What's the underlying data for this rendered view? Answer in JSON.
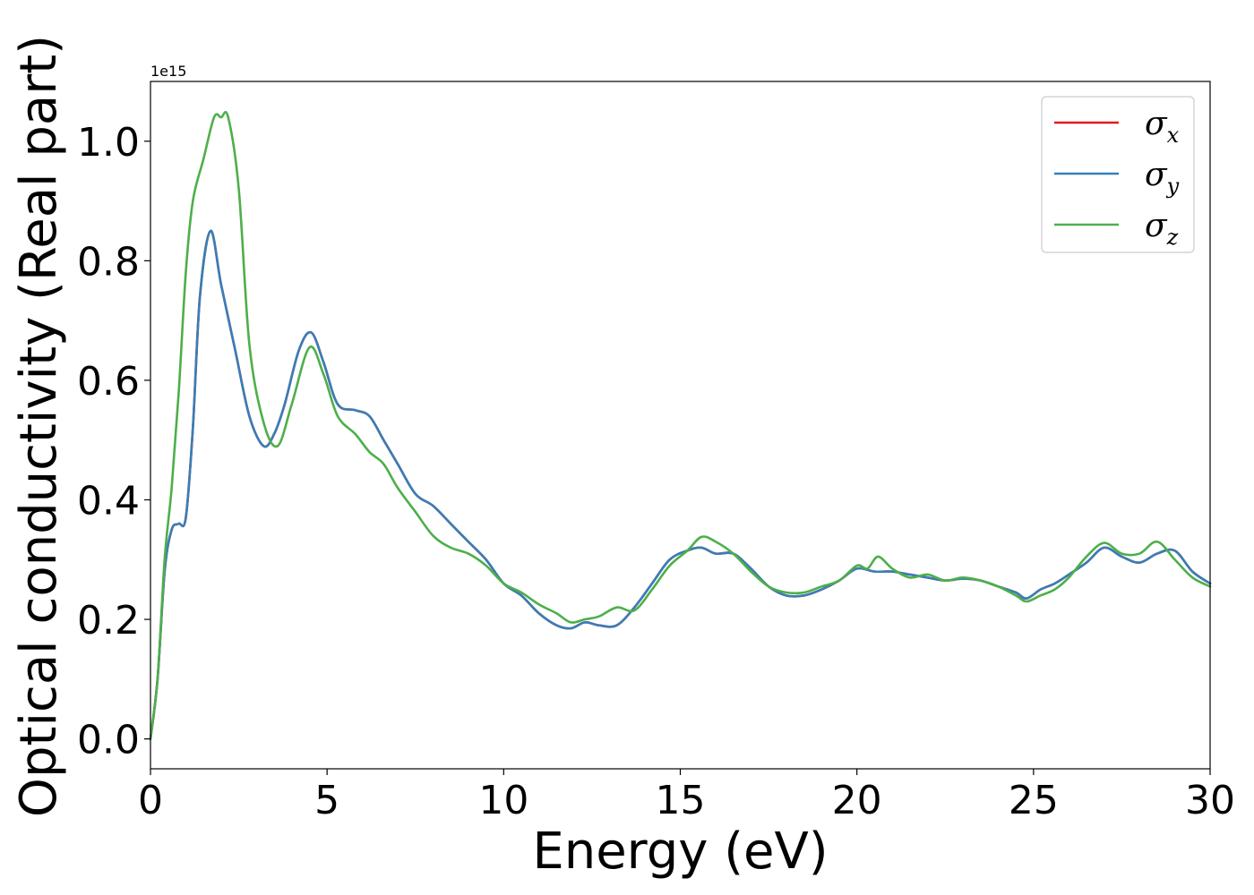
{
  "chart_data": {
    "type": "line",
    "title": "",
    "xlabel": "Energy (eV)",
    "ylabel": "Optical conductivity (Real part)",
    "y_offset_label": "1e15",
    "xlim": [
      0,
      30
    ],
    "ylim": [
      -0.05,
      1.1
    ],
    "y_scale_factor": 1000000000000000.0,
    "x_ticks": [
      0,
      5,
      10,
      15,
      20,
      25,
      30
    ],
    "x_tick_labels": [
      "0",
      "5",
      "10",
      "15",
      "20",
      "25",
      "30"
    ],
    "y_ticks": [
      0.0,
      0.2,
      0.4,
      0.6,
      0.8,
      1.0
    ],
    "y_tick_labels": [
      "0.0",
      "0.2",
      "0.4",
      "0.6",
      "0.8",
      "1.0"
    ],
    "grid": false,
    "legend_position": "top-right",
    "series": [
      {
        "name": "σx",
        "legend_base": "σ",
        "legend_sub": "x",
        "color": "#e41a1c",
        "x": [
          0,
          0.2,
          0.4,
          0.6,
          0.8,
          1.0,
          1.2,
          1.4,
          1.7,
          2.0,
          2.4,
          2.8,
          3.2,
          3.5,
          3.8,
          4.2,
          4.55,
          4.9,
          5.3,
          5.8,
          6.2,
          6.6,
          7.0,
          7.5,
          8.0,
          8.5,
          9.0,
          9.5,
          10.0,
          10.5,
          11.0,
          11.5,
          11.9,
          12.3,
          12.7,
          13.2,
          13.7,
          14.2,
          14.7,
          15.2,
          15.6,
          16.0,
          16.5,
          17.0,
          17.5,
          18.0,
          18.5,
          19.0,
          19.5,
          20.0,
          20.5,
          21.0,
          21.5,
          22.0,
          22.5,
          23.0,
          23.5,
          24.0,
          24.5,
          24.8,
          25.2,
          25.6,
          26.0,
          26.5,
          27.0,
          27.5,
          28.0,
          28.5,
          29.0,
          29.5,
          30.0
        ],
        "y": [
          0.0,
          0.1,
          0.28,
          0.35,
          0.36,
          0.37,
          0.52,
          0.74,
          0.85,
          0.76,
          0.65,
          0.54,
          0.49,
          0.51,
          0.56,
          0.65,
          0.68,
          0.63,
          0.56,
          0.55,
          0.54,
          0.5,
          0.46,
          0.41,
          0.39,
          0.36,
          0.33,
          0.3,
          0.26,
          0.24,
          0.21,
          0.19,
          0.185,
          0.195,
          0.19,
          0.19,
          0.22,
          0.26,
          0.3,
          0.315,
          0.32,
          0.31,
          0.31,
          0.285,
          0.255,
          0.24,
          0.24,
          0.25,
          0.265,
          0.285,
          0.28,
          0.28,
          0.275,
          0.27,
          0.265,
          0.268,
          0.265,
          0.255,
          0.245,
          0.235,
          0.25,
          0.26,
          0.275,
          0.295,
          0.32,
          0.305,
          0.295,
          0.31,
          0.315,
          0.28,
          0.26
        ]
      },
      {
        "name": "σy",
        "legend_base": "σ",
        "legend_sub": "y",
        "color": "#377eb8",
        "x": [
          0,
          0.2,
          0.4,
          0.6,
          0.8,
          1.0,
          1.2,
          1.4,
          1.7,
          2.0,
          2.4,
          2.8,
          3.2,
          3.5,
          3.8,
          4.2,
          4.55,
          4.9,
          5.3,
          5.8,
          6.2,
          6.6,
          7.0,
          7.5,
          8.0,
          8.5,
          9.0,
          9.5,
          10.0,
          10.5,
          11.0,
          11.5,
          11.9,
          12.3,
          12.7,
          13.2,
          13.7,
          14.2,
          14.7,
          15.2,
          15.6,
          16.0,
          16.5,
          17.0,
          17.5,
          18.0,
          18.5,
          19.0,
          19.5,
          20.0,
          20.5,
          21.0,
          21.5,
          22.0,
          22.5,
          23.0,
          23.5,
          24.0,
          24.5,
          24.8,
          25.2,
          25.6,
          26.0,
          26.5,
          27.0,
          27.5,
          28.0,
          28.5,
          29.0,
          29.5,
          30.0
        ],
        "y": [
          0.0,
          0.1,
          0.28,
          0.35,
          0.36,
          0.37,
          0.52,
          0.74,
          0.85,
          0.76,
          0.65,
          0.54,
          0.49,
          0.51,
          0.56,
          0.65,
          0.68,
          0.63,
          0.56,
          0.55,
          0.54,
          0.5,
          0.46,
          0.41,
          0.39,
          0.36,
          0.33,
          0.3,
          0.26,
          0.24,
          0.21,
          0.19,
          0.185,
          0.195,
          0.19,
          0.19,
          0.22,
          0.26,
          0.3,
          0.315,
          0.32,
          0.31,
          0.31,
          0.285,
          0.255,
          0.24,
          0.24,
          0.25,
          0.265,
          0.285,
          0.28,
          0.28,
          0.275,
          0.27,
          0.265,
          0.268,
          0.265,
          0.255,
          0.245,
          0.235,
          0.25,
          0.26,
          0.275,
          0.295,
          0.32,
          0.305,
          0.295,
          0.31,
          0.315,
          0.28,
          0.26
        ]
      },
      {
        "name": "σz",
        "legend_base": "σ",
        "legend_sub": "z",
        "color": "#4daf4a",
        "x": [
          0,
          0.2,
          0.4,
          0.6,
          0.8,
          1.0,
          1.2,
          1.5,
          1.8,
          2.0,
          2.2,
          2.5,
          2.8,
          3.2,
          3.6,
          4.0,
          4.5,
          4.9,
          5.3,
          5.8,
          6.2,
          6.6,
          7.0,
          7.5,
          8.0,
          8.5,
          9.0,
          9.5,
          10.0,
          10.5,
          11.0,
          11.5,
          11.9,
          12.3,
          12.7,
          13.2,
          13.7,
          14.2,
          14.7,
          15.2,
          15.6,
          16.0,
          16.5,
          17.0,
          17.5,
          18.0,
          18.5,
          19.0,
          19.5,
          20.0,
          20.3,
          20.6,
          21.0,
          21.5,
          22.0,
          22.5,
          23.0,
          23.5,
          24.0,
          24.5,
          24.8,
          25.2,
          25.6,
          26.0,
          26.5,
          27.0,
          27.5,
          28.0,
          28.5,
          29.0,
          29.5,
          30.0
        ],
        "y": [
          0.0,
          0.1,
          0.3,
          0.42,
          0.58,
          0.78,
          0.9,
          0.97,
          1.04,
          1.04,
          1.04,
          0.92,
          0.66,
          0.53,
          0.49,
          0.56,
          0.655,
          0.61,
          0.54,
          0.51,
          0.48,
          0.46,
          0.42,
          0.38,
          0.34,
          0.32,
          0.31,
          0.29,
          0.26,
          0.245,
          0.225,
          0.21,
          0.195,
          0.2,
          0.205,
          0.22,
          0.215,
          0.25,
          0.29,
          0.315,
          0.338,
          0.33,
          0.31,
          0.28,
          0.255,
          0.245,
          0.245,
          0.255,
          0.265,
          0.29,
          0.285,
          0.305,
          0.285,
          0.27,
          0.275,
          0.265,
          0.27,
          0.265,
          0.255,
          0.24,
          0.23,
          0.24,
          0.25,
          0.27,
          0.305,
          0.328,
          0.31,
          0.31,
          0.33,
          0.3,
          0.27,
          0.255
        ]
      }
    ]
  }
}
